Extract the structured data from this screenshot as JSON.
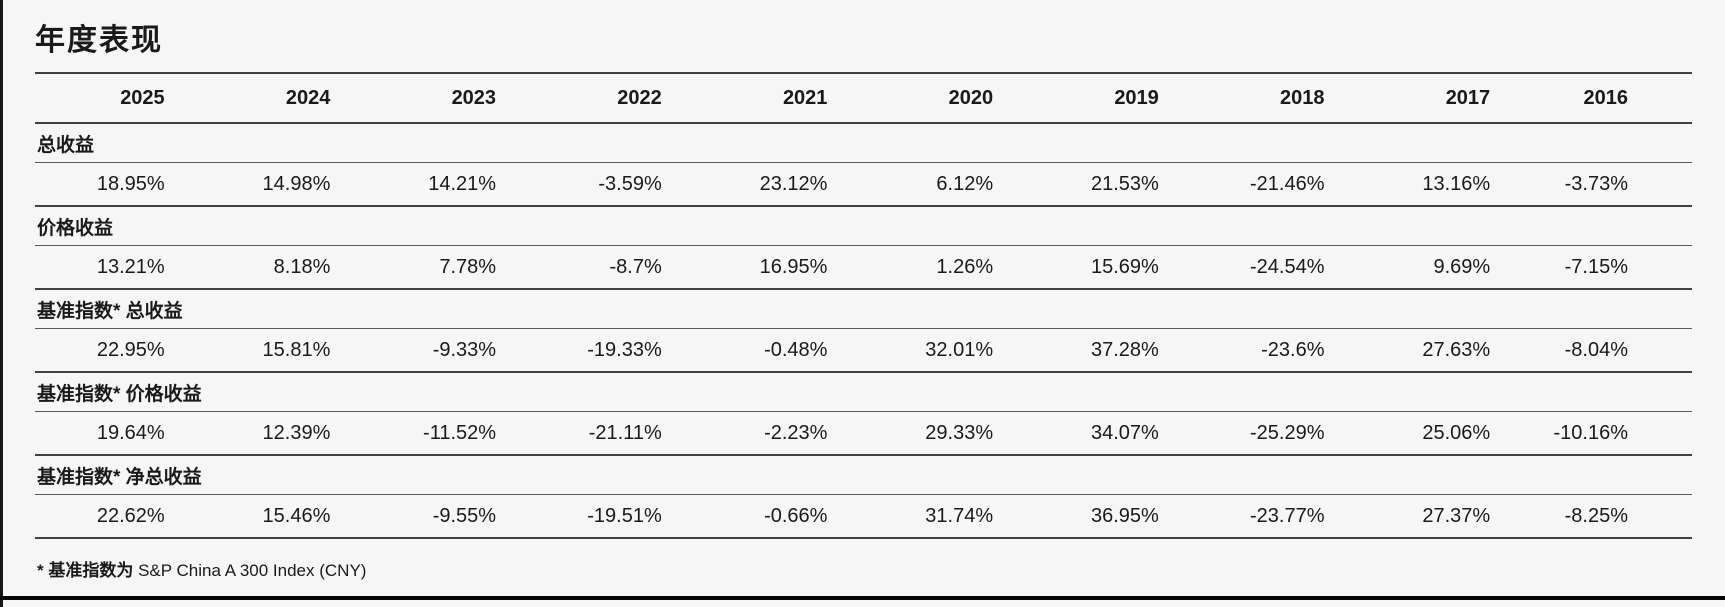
{
  "page": {
    "title": "年度表现",
    "footnote": {
      "prefix": "* 基准指数为",
      "index_name": "S&P China A 300 Index (CNY)"
    }
  },
  "table": {
    "columns": [
      "2025",
      "2024",
      "2023",
      "2022",
      "2021",
      "2020",
      "2019",
      "2018",
      "2017",
      "2016"
    ],
    "rows": [
      {
        "label": "总收益",
        "values": [
          "18.95%",
          "14.98%",
          "14.21%",
          "-3.59%",
          "23.12%",
          "6.12%",
          "21.53%",
          "-21.46%",
          "13.16%",
          "-3.73%"
        ]
      },
      {
        "label": "价格收益",
        "values": [
          "13.21%",
          "8.18%",
          "7.78%",
          "-8.7%",
          "16.95%",
          "1.26%",
          "15.69%",
          "-24.54%",
          "9.69%",
          "-7.15%"
        ]
      },
      {
        "label": "基准指数* 总收益",
        "values": [
          "22.95%",
          "15.81%",
          "-9.33%",
          "-19.33%",
          "-0.48%",
          "32.01%",
          "37.28%",
          "-23.6%",
          "27.63%",
          "-8.04%"
        ]
      },
      {
        "label": "基准指数* 价格收益",
        "values": [
          "19.64%",
          "12.39%",
          "-11.52%",
          "-21.11%",
          "-2.23%",
          "29.33%",
          "34.07%",
          "-25.29%",
          "25.06%",
          "-10.16%"
        ]
      },
      {
        "label": "基准指数* 净总收益",
        "values": [
          "22.62%",
          "15.46%",
          "-9.55%",
          "-19.51%",
          "-0.66%",
          "31.74%",
          "36.95%",
          "-23.77%",
          "27.37%",
          "-8.25%"
        ]
      }
    ]
  },
  "chart_data": {
    "type": "table",
    "title": "年度表现",
    "categories": [
      "2025",
      "2024",
      "2023",
      "2022",
      "2021",
      "2020",
      "2019",
      "2018",
      "2017",
      "2016"
    ],
    "unit": "%",
    "series": [
      {
        "name": "总收益",
        "values": [
          18.95,
          14.98,
          14.21,
          -3.59,
          23.12,
          6.12,
          21.53,
          -21.46,
          13.16,
          -3.73
        ]
      },
      {
        "name": "价格收益",
        "values": [
          13.21,
          8.18,
          7.78,
          -8.7,
          16.95,
          1.26,
          15.69,
          -24.54,
          9.69,
          -7.15
        ]
      },
      {
        "name": "基准指数* 总收益",
        "values": [
          22.95,
          15.81,
          -9.33,
          -19.33,
          -0.48,
          32.01,
          37.28,
          -23.6,
          27.63,
          -8.04
        ]
      },
      {
        "name": "基准指数* 价格收益",
        "values": [
          19.64,
          12.39,
          -11.52,
          -21.11,
          -2.23,
          29.33,
          34.07,
          -25.29,
          25.06,
          -10.16
        ]
      },
      {
        "name": "基准指数* 净总收益",
        "values": [
          22.62,
          15.46,
          -9.55,
          -19.51,
          -0.66,
          31.74,
          36.95,
          -23.77,
          27.37,
          -8.25
        ]
      }
    ],
    "footnote": "* 基准指数为 S&P China A 300 Index (CNY)"
  },
  "colors": {
    "background": "#f6f6f6",
    "text": "#1a1a1a",
    "rule_major": "#3f3f3f",
    "rule_minor": "#5a5a5a",
    "edge_bar": "#050505"
  }
}
